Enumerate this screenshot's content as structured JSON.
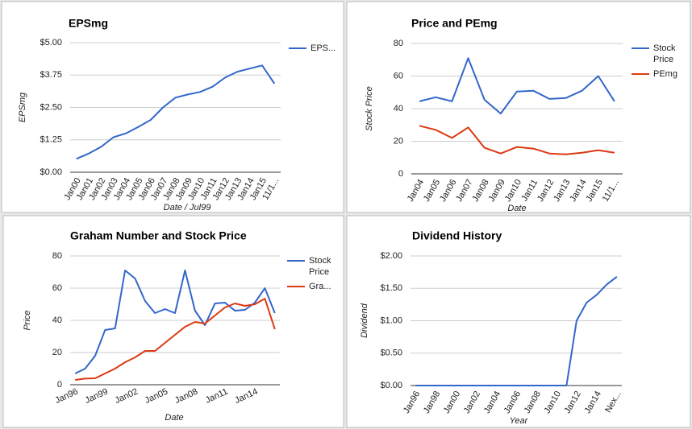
{
  "chart_data": [
    {
      "type": "line",
      "title": "EPSmg",
      "x_label": "Date / Jul99",
      "y_label": "EPSmg",
      "categories": [
        "Jan00",
        "Jan01",
        "Jan02",
        "Jan03",
        "Jan04",
        "Jan05",
        "Jan06",
        "Jan07",
        "Jan08",
        "Jan09",
        "Jan10",
        "Jan11",
        "Jan12",
        "Jan13",
        "Jan14",
        "Jan15",
        "11/1..."
      ],
      "series": [
        {
          "name": "EPS...",
          "color": "#3366cc",
          "values": [
            0.52,
            0.72,
            0.98,
            1.35,
            1.5,
            1.75,
            2.02,
            2.5,
            2.88,
            3.0,
            3.1,
            3.3,
            3.65,
            3.88,
            4.0,
            4.12,
            3.42
          ]
        }
      ],
      "ylim": [
        0,
        5
      ],
      "yticks": [
        {
          "value": 0,
          "label": "$0.00"
        },
        {
          "value": 1.25,
          "label": "$1.25"
        },
        {
          "value": 2.5,
          "label": "$2.50"
        },
        {
          "value": 3.75,
          "label": "$3.75"
        },
        {
          "value": 5,
          "label": "$5.00"
        }
      ],
      "grid": true
    },
    {
      "type": "line",
      "title": "Price and PEmg",
      "x_label": "Date",
      "y_label": "Stock Price",
      "categories": [
        "Jan04",
        "Jan05",
        "Jan06",
        "Jan07",
        "Jan08",
        "Jan09",
        "Jan10",
        "Jan11",
        "Jan12",
        "Jan13",
        "Jan14",
        "Jan15",
        "11/1..."
      ],
      "series": [
        {
          "name": "Stock Price",
          "color": "#3366cc",
          "values": [
            44.5,
            47,
            44.5,
            71,
            45.5,
            37,
            50.5,
            51,
            46,
            46.5,
            51,
            60,
            44.5
          ]
        },
        {
          "name": "PEmg",
          "color": "#dc3912",
          "values": [
            29.5,
            27,
            22,
            28.5,
            16,
            12.5,
            16.5,
            15.5,
            12.5,
            12,
            13,
            14.5,
            13
          ]
        }
      ],
      "ylim": [
        0,
        80
      ],
      "yticks": [
        0,
        20,
        40,
        60,
        80
      ],
      "grid": true
    },
    {
      "type": "line",
      "title": "Graham Number and Stock Price",
      "x_label": "Date",
      "y_label": "Price",
      "categories": [
        "Jan96",
        null,
        null,
        "Jan99",
        null,
        null,
        "Jan02",
        null,
        null,
        "Jan05",
        null,
        null,
        "Jan08",
        null,
        null,
        "Jan11",
        null,
        null,
        "Jan14",
        null,
        null
      ],
      "series": [
        {
          "name": "Stock Price",
          "color": "#3366cc",
          "values": [
            7,
            10,
            18,
            34,
            35,
            71,
            66,
            52,
            44.5,
            47,
            44.5,
            71,
            46,
            37,
            50.5,
            51,
            46,
            46.5,
            51,
            60,
            44.5
          ]
        },
        {
          "name": "Gra...",
          "color": "#dc3912",
          "values": [
            3,
            3.8,
            4,
            7,
            10,
            14,
            17,
            21,
            21,
            26,
            31,
            36,
            39,
            38,
            43,
            48,
            50.5,
            49,
            50,
            53.5,
            34.5
          ]
        }
      ],
      "ylim": [
        0,
        80
      ],
      "yticks": [
        0,
        20,
        40,
        60,
        80
      ],
      "grid": true
    },
    {
      "type": "line",
      "title": "Dividend History",
      "x_label": "Year",
      "y_label": "Dividend",
      "categories": [
        "Jan96",
        null,
        "Jan98",
        null,
        "Jan00",
        null,
        "Jan02",
        null,
        "Jan04",
        null,
        "Jan06",
        null,
        "Jan08",
        null,
        "Jan10",
        null,
        "Jan12",
        null,
        "Jan14",
        null,
        "Nex..."
      ],
      "series": [
        {
          "color": "#3366cc",
          "values": [
            0,
            0,
            0,
            0,
            0,
            0,
            0,
            0,
            0,
            0,
            0,
            0,
            0,
            0,
            0,
            0,
            1.0,
            1.28,
            1.4,
            1.56,
            1.68
          ]
        }
      ],
      "ylim": [
        0,
        2
      ],
      "yticks": [
        {
          "value": 0,
          "label": "$0.00"
        },
        {
          "value": 0.5,
          "label": "$0.50"
        },
        {
          "value": 1,
          "label": "$1.00"
        },
        {
          "value": 1.5,
          "label": "$1.50"
        },
        {
          "value": 2,
          "label": "$2.00"
        }
      ],
      "grid": true
    }
  ]
}
